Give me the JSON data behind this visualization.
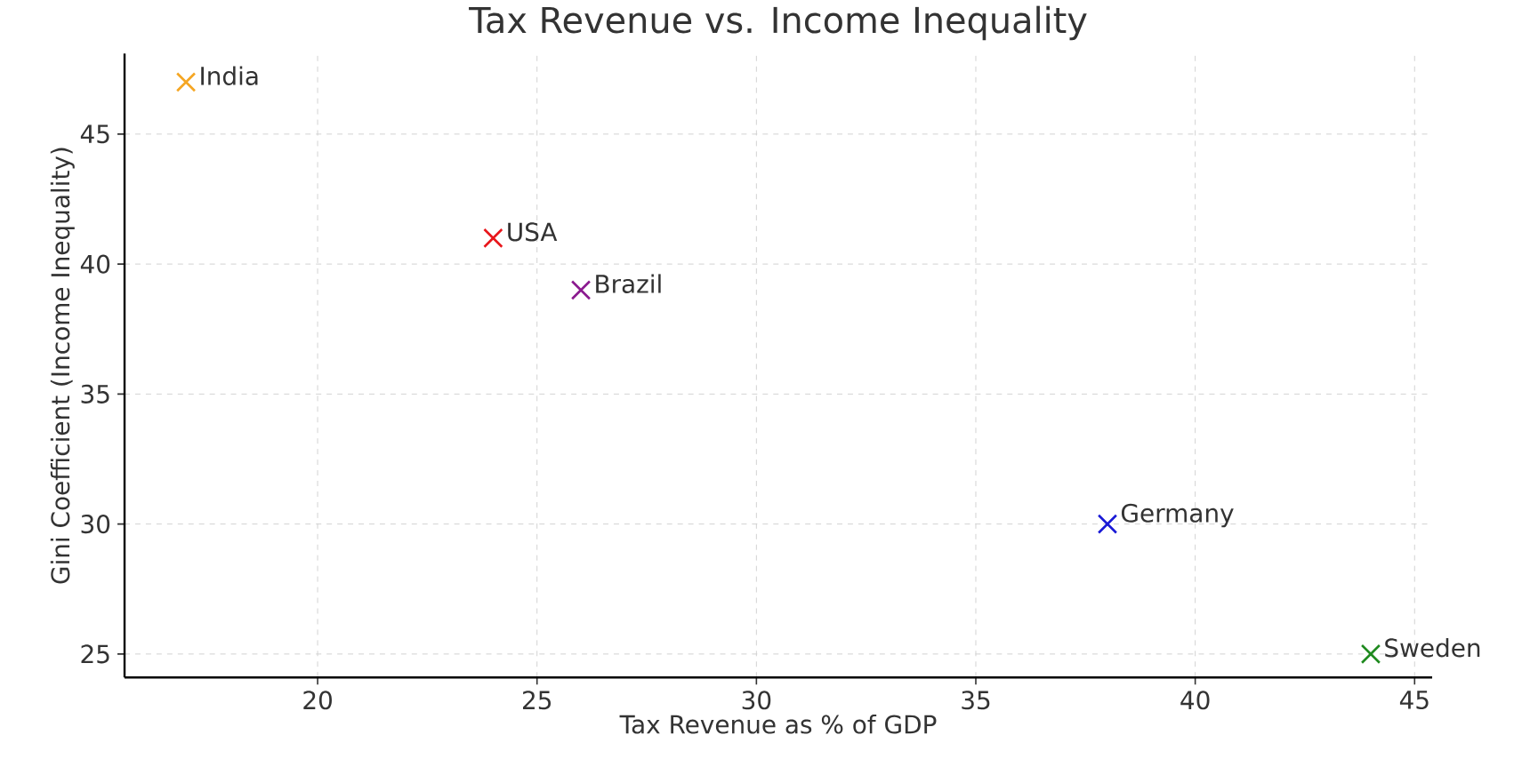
{
  "chart_data": {
    "type": "scatter",
    "title": "Tax Revenue vs. Income Inequality",
    "xlabel": "Tax Revenue as % of GDP",
    "ylabel": "Gini Coefficient (Income Inequality)",
    "series": [
      {
        "name": "India",
        "color": "#f5a623",
        "x": [
          17
        ],
        "values": [
          47
        ]
      },
      {
        "name": "USA",
        "color": "#e8161b",
        "x": [
          24
        ],
        "values": [
          41
        ]
      },
      {
        "name": "Brazil",
        "color": "#8b1a8f",
        "x": [
          26
        ],
        "values": [
          39
        ]
      },
      {
        "name": "Germany",
        "color": "#1a1ad6",
        "x": [
          38
        ],
        "values": [
          30
        ]
      },
      {
        "name": "Sweden",
        "color": "#1f8a1f",
        "x": [
          44
        ],
        "values": [
          25
        ]
      }
    ],
    "xlim": [
      15.6,
      45.4
    ],
    "ylim": [
      24.1,
      48.1
    ],
    "xticks": [
      20,
      25,
      30,
      35,
      40,
      45
    ],
    "yticks": [
      25,
      30,
      35,
      40,
      45
    ],
    "grid": true,
    "marker": "cross"
  }
}
